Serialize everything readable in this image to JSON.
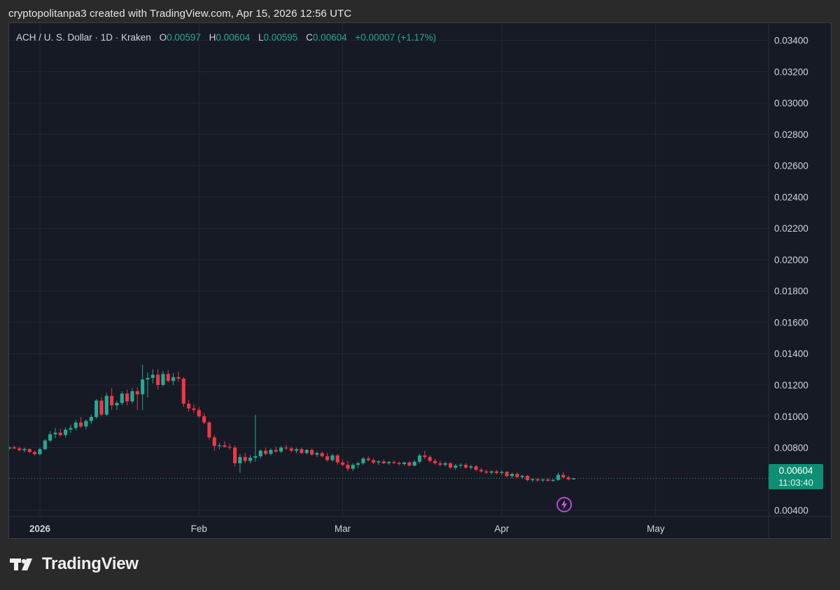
{
  "caption": "cryptopolitanpa3 created with TradingView.com, Apr 15, 2026 12:56 UTC",
  "legend": {
    "symbol": "ACH / U. S. Dollar · 1D · Kraken",
    "o_label": "O",
    "o_value": "0.00597",
    "h_label": "H",
    "h_value": "0.00604",
    "l_label": "L",
    "l_value": "0.00595",
    "c_label": "C",
    "c_value": "0.00604",
    "change": "+0.00007 (+1.17%)"
  },
  "price_tag": {
    "price": "0.00604",
    "countdown": "11:03:40"
  },
  "brand": "TradingView",
  "colors": {
    "up": "#22ab94",
    "down": "#f23645",
    "background": "#161a25",
    "grid": "#242733",
    "axis_text": "#d1d4dc"
  },
  "chart_data": {
    "type": "candlestick",
    "title": "ACH / U. S. Dollar · 1D · Kraken",
    "ylim": [
      0.0036,
      0.0351
    ],
    "xlim": [
      "2025-12-26",
      "2026-05-23"
    ],
    "y_ticks": [
      "0.03400",
      "0.03200",
      "0.03000",
      "0.02800",
      "0.02600",
      "0.02400",
      "0.02200",
      "0.02000",
      "0.01800",
      "0.01600",
      "0.01400",
      "0.01200",
      "0.01000",
      "0.00800",
      "0.00400"
    ],
    "x_ticks": [
      {
        "date": "2026-01-01",
        "label": "2026"
      },
      {
        "date": "2026-02-01",
        "label": "Feb"
      },
      {
        "date": "2026-03-01",
        "label": "Mar"
      },
      {
        "date": "2026-04-01",
        "label": "Apr"
      },
      {
        "date": "2026-05-01",
        "label": "May"
      }
    ],
    "last_price": 0.00604,
    "candles": [
      {
        "d": "2025-12-26",
        "o": 0.00793,
        "h": 0.00808,
        "l": 0.00785,
        "c": 0.00802
      },
      {
        "d": "2025-12-27",
        "o": 0.00802,
        "h": 0.00812,
        "l": 0.0079,
        "c": 0.00795
      },
      {
        "d": "2025-12-28",
        "o": 0.00795,
        "h": 0.00805,
        "l": 0.00777,
        "c": 0.00783
      },
      {
        "d": "2025-12-29",
        "o": 0.00783,
        "h": 0.008,
        "l": 0.0077,
        "c": 0.00791
      },
      {
        "d": "2025-12-30",
        "o": 0.00791,
        "h": 0.00793,
        "l": 0.00765,
        "c": 0.00772
      },
      {
        "d": "2025-12-31",
        "o": 0.00772,
        "h": 0.0078,
        "l": 0.0075,
        "c": 0.00758
      },
      {
        "d": "2026-01-01",
        "o": 0.00758,
        "h": 0.008,
        "l": 0.00748,
        "c": 0.0079
      },
      {
        "d": "2026-01-02",
        "o": 0.0079,
        "h": 0.00855,
        "l": 0.00785,
        "c": 0.00845
      },
      {
        "d": "2026-01-03",
        "o": 0.00845,
        "h": 0.00905,
        "l": 0.00835,
        "c": 0.00885
      },
      {
        "d": "2026-01-04",
        "o": 0.00885,
        "h": 0.00925,
        "l": 0.0086,
        "c": 0.00895
      },
      {
        "d": "2026-01-05",
        "o": 0.00895,
        "h": 0.0092,
        "l": 0.0087,
        "c": 0.0088
      },
      {
        "d": "2026-01-06",
        "o": 0.0088,
        "h": 0.0093,
        "l": 0.00865,
        "c": 0.00915
      },
      {
        "d": "2026-01-07",
        "o": 0.00915,
        "h": 0.00945,
        "l": 0.00895,
        "c": 0.00925
      },
      {
        "d": "2026-01-08",
        "o": 0.00925,
        "h": 0.00975,
        "l": 0.0091,
        "c": 0.0096
      },
      {
        "d": "2026-01-09",
        "o": 0.0096,
        "h": 0.00995,
        "l": 0.00925,
        "c": 0.00935
      },
      {
        "d": "2026-01-10",
        "o": 0.00935,
        "h": 0.0098,
        "l": 0.00915,
        "c": 0.0097
      },
      {
        "d": "2026-01-11",
        "o": 0.0097,
        "h": 0.0101,
        "l": 0.0095,
        "c": 0.00995
      },
      {
        "d": "2026-01-12",
        "o": 0.00995,
        "h": 0.0111,
        "l": 0.00985,
        "c": 0.011
      },
      {
        "d": "2026-01-13",
        "o": 0.011,
        "h": 0.0112,
        "l": 0.01,
        "c": 0.0101
      },
      {
        "d": "2026-01-14",
        "o": 0.0101,
        "h": 0.0115,
        "l": 0.01,
        "c": 0.0113
      },
      {
        "d": "2026-01-15",
        "o": 0.0113,
        "h": 0.0118,
        "l": 0.0104,
        "c": 0.0107
      },
      {
        "d": "2026-01-16",
        "o": 0.0107,
        "h": 0.011,
        "l": 0.0104,
        "c": 0.01085
      },
      {
        "d": "2026-01-17",
        "o": 0.01085,
        "h": 0.0116,
        "l": 0.0107,
        "c": 0.01145
      },
      {
        "d": "2026-01-18",
        "o": 0.01145,
        "h": 0.0117,
        "l": 0.0107,
        "c": 0.01095
      },
      {
        "d": "2026-01-19",
        "o": 0.01095,
        "h": 0.0118,
        "l": 0.0108,
        "c": 0.0116
      },
      {
        "d": "2026-01-20",
        "o": 0.0116,
        "h": 0.01185,
        "l": 0.0104,
        "c": 0.0114
      },
      {
        "d": "2026-01-21",
        "o": 0.0114,
        "h": 0.0133,
        "l": 0.0104,
        "c": 0.01235
      },
      {
        "d": "2026-01-22",
        "o": 0.01235,
        "h": 0.0128,
        "l": 0.0112,
        "c": 0.01245
      },
      {
        "d": "2026-01-23",
        "o": 0.01245,
        "h": 0.013,
        "l": 0.0121,
        "c": 0.01265
      },
      {
        "d": "2026-01-24",
        "o": 0.01265,
        "h": 0.013,
        "l": 0.0117,
        "c": 0.012
      },
      {
        "d": "2026-01-25",
        "o": 0.012,
        "h": 0.0129,
        "l": 0.0119,
        "c": 0.0127
      },
      {
        "d": "2026-01-26",
        "o": 0.0127,
        "h": 0.01295,
        "l": 0.01215,
        "c": 0.01225
      },
      {
        "d": "2026-01-27",
        "o": 0.01225,
        "h": 0.01275,
        "l": 0.012,
        "c": 0.0125
      },
      {
        "d": "2026-01-28",
        "o": 0.0125,
        "h": 0.01285,
        "l": 0.0122,
        "c": 0.0124
      },
      {
        "d": "2026-01-29",
        "o": 0.0124,
        "h": 0.0125,
        "l": 0.0106,
        "c": 0.0108
      },
      {
        "d": "2026-01-30",
        "o": 0.0108,
        "h": 0.01105,
        "l": 0.0103,
        "c": 0.0105
      },
      {
        "d": "2026-01-31",
        "o": 0.0105,
        "h": 0.01075,
        "l": 0.0102,
        "c": 0.0104
      },
      {
        "d": "2026-02-01",
        "o": 0.0104,
        "h": 0.0106,
        "l": 0.0099,
        "c": 0.01
      },
      {
        "d": "2026-02-02",
        "o": 0.01,
        "h": 0.0102,
        "l": 0.0095,
        "c": 0.0096
      },
      {
        "d": "2026-02-03",
        "o": 0.0096,
        "h": 0.0097,
        "l": 0.0085,
        "c": 0.00865
      },
      {
        "d": "2026-02-04",
        "o": 0.00865,
        "h": 0.0088,
        "l": 0.0078,
        "c": 0.0081
      },
      {
        "d": "2026-02-05",
        "o": 0.0081,
        "h": 0.0083,
        "l": 0.0079,
        "c": 0.00815
      },
      {
        "d": "2026-02-06",
        "o": 0.00815,
        "h": 0.0084,
        "l": 0.008,
        "c": 0.00805
      },
      {
        "d": "2026-02-07",
        "o": 0.00805,
        "h": 0.00825,
        "l": 0.00785,
        "c": 0.008
      },
      {
        "d": "2026-02-08",
        "o": 0.008,
        "h": 0.00815,
        "l": 0.0068,
        "c": 0.007
      },
      {
        "d": "2026-02-09",
        "o": 0.007,
        "h": 0.0076,
        "l": 0.0064,
        "c": 0.0074
      },
      {
        "d": "2026-02-10",
        "o": 0.0074,
        "h": 0.00765,
        "l": 0.007,
        "c": 0.00715
      },
      {
        "d": "2026-02-11",
        "o": 0.00715,
        "h": 0.0075,
        "l": 0.007,
        "c": 0.00735
      },
      {
        "d": "2026-02-12",
        "o": 0.00735,
        "h": 0.0101,
        "l": 0.0071,
        "c": 0.00745
      },
      {
        "d": "2026-02-13",
        "o": 0.00745,
        "h": 0.0079,
        "l": 0.0073,
        "c": 0.0078
      },
      {
        "d": "2026-02-14",
        "o": 0.0078,
        "h": 0.008,
        "l": 0.0075,
        "c": 0.0076
      },
      {
        "d": "2026-02-15",
        "o": 0.0076,
        "h": 0.00795,
        "l": 0.0075,
        "c": 0.00785
      },
      {
        "d": "2026-02-16",
        "o": 0.00785,
        "h": 0.00805,
        "l": 0.00765,
        "c": 0.00775
      },
      {
        "d": "2026-02-17",
        "o": 0.00775,
        "h": 0.0081,
        "l": 0.00765,
        "c": 0.008
      },
      {
        "d": "2026-02-18",
        "o": 0.008,
        "h": 0.0082,
        "l": 0.00785,
        "c": 0.00795
      },
      {
        "d": "2026-02-19",
        "o": 0.00795,
        "h": 0.00805,
        "l": 0.0077,
        "c": 0.0078
      },
      {
        "d": "2026-02-20",
        "o": 0.0078,
        "h": 0.008,
        "l": 0.00765,
        "c": 0.0079
      },
      {
        "d": "2026-02-21",
        "o": 0.0079,
        "h": 0.008,
        "l": 0.0076,
        "c": 0.00765
      },
      {
        "d": "2026-02-22",
        "o": 0.00765,
        "h": 0.0079,
        "l": 0.00755,
        "c": 0.00785
      },
      {
        "d": "2026-02-23",
        "o": 0.00785,
        "h": 0.00795,
        "l": 0.0075,
        "c": 0.00755
      },
      {
        "d": "2026-02-24",
        "o": 0.00755,
        "h": 0.00775,
        "l": 0.0074,
        "c": 0.00765
      },
      {
        "d": "2026-02-25",
        "o": 0.00765,
        "h": 0.00775,
        "l": 0.00735,
        "c": 0.00745
      },
      {
        "d": "2026-02-26",
        "o": 0.00745,
        "h": 0.00765,
        "l": 0.0071,
        "c": 0.0072
      },
      {
        "d": "2026-02-27",
        "o": 0.0072,
        "h": 0.0076,
        "l": 0.0071,
        "c": 0.0075
      },
      {
        "d": "2026-02-28",
        "o": 0.0075,
        "h": 0.0076,
        "l": 0.0069,
        "c": 0.00705
      },
      {
        "d": "2026-03-01",
        "o": 0.00705,
        "h": 0.00725,
        "l": 0.0068,
        "c": 0.0069
      },
      {
        "d": "2026-03-02",
        "o": 0.0069,
        "h": 0.00715,
        "l": 0.0065,
        "c": 0.00665
      },
      {
        "d": "2026-03-03",
        "o": 0.00665,
        "h": 0.007,
        "l": 0.0065,
        "c": 0.0069
      },
      {
        "d": "2026-03-04",
        "o": 0.0069,
        "h": 0.0071,
        "l": 0.0067,
        "c": 0.007
      },
      {
        "d": "2026-03-05",
        "o": 0.007,
        "h": 0.0074,
        "l": 0.0069,
        "c": 0.0073
      },
      {
        "d": "2026-03-06",
        "o": 0.0073,
        "h": 0.00745,
        "l": 0.0071,
        "c": 0.0072
      },
      {
        "d": "2026-03-07",
        "o": 0.0072,
        "h": 0.0073,
        "l": 0.00695,
        "c": 0.00705
      },
      {
        "d": "2026-03-08",
        "o": 0.00705,
        "h": 0.0072,
        "l": 0.0069,
        "c": 0.00712
      },
      {
        "d": "2026-03-09",
        "o": 0.00712,
        "h": 0.00725,
        "l": 0.00695,
        "c": 0.007
      },
      {
        "d": "2026-03-10",
        "o": 0.007,
        "h": 0.00715,
        "l": 0.0069,
        "c": 0.00708
      },
      {
        "d": "2026-03-11",
        "o": 0.00708,
        "h": 0.00718,
        "l": 0.00695,
        "c": 0.00702
      },
      {
        "d": "2026-03-12",
        "o": 0.00702,
        "h": 0.00712,
        "l": 0.00685,
        "c": 0.00695
      },
      {
        "d": "2026-03-13",
        "o": 0.00695,
        "h": 0.0071,
        "l": 0.00685,
        "c": 0.00705
      },
      {
        "d": "2026-03-14",
        "o": 0.00705,
        "h": 0.00712,
        "l": 0.0068,
        "c": 0.00685
      },
      {
        "d": "2026-03-15",
        "o": 0.00685,
        "h": 0.0072,
        "l": 0.0068,
        "c": 0.0071
      },
      {
        "d": "2026-03-16",
        "o": 0.0071,
        "h": 0.0076,
        "l": 0.007,
        "c": 0.0075
      },
      {
        "d": "2026-03-17",
        "o": 0.0075,
        "h": 0.0078,
        "l": 0.00725,
        "c": 0.0074
      },
      {
        "d": "2026-03-18",
        "o": 0.0074,
        "h": 0.0075,
        "l": 0.00705,
        "c": 0.00715
      },
      {
        "d": "2026-03-19",
        "o": 0.00715,
        "h": 0.0073,
        "l": 0.0069,
        "c": 0.007
      },
      {
        "d": "2026-03-20",
        "o": 0.007,
        "h": 0.00715,
        "l": 0.0068,
        "c": 0.0069
      },
      {
        "d": "2026-03-21",
        "o": 0.0069,
        "h": 0.0071,
        "l": 0.0068,
        "c": 0.007
      },
      {
        "d": "2026-03-22",
        "o": 0.007,
        "h": 0.00705,
        "l": 0.00665,
        "c": 0.00672
      },
      {
        "d": "2026-03-23",
        "o": 0.00672,
        "h": 0.00695,
        "l": 0.0066,
        "c": 0.00685
      },
      {
        "d": "2026-03-24",
        "o": 0.00685,
        "h": 0.007,
        "l": 0.0067,
        "c": 0.0069
      },
      {
        "d": "2026-03-25",
        "o": 0.0069,
        "h": 0.007,
        "l": 0.00665,
        "c": 0.00672
      },
      {
        "d": "2026-03-26",
        "o": 0.00672,
        "h": 0.0069,
        "l": 0.0066,
        "c": 0.0068
      },
      {
        "d": "2026-03-27",
        "o": 0.0068,
        "h": 0.0069,
        "l": 0.0065,
        "c": 0.00658
      },
      {
        "d": "2026-03-28",
        "o": 0.00658,
        "h": 0.0067,
        "l": 0.0064,
        "c": 0.00648
      },
      {
        "d": "2026-03-29",
        "o": 0.00648,
        "h": 0.0066,
        "l": 0.0063,
        "c": 0.0064
      },
      {
        "d": "2026-03-30",
        "o": 0.0064,
        "h": 0.00655,
        "l": 0.00628,
        "c": 0.00648
      },
      {
        "d": "2026-03-31",
        "o": 0.00648,
        "h": 0.00658,
        "l": 0.0063,
        "c": 0.00638
      },
      {
        "d": "2026-04-01",
        "o": 0.00638,
        "h": 0.00655,
        "l": 0.00625,
        "c": 0.00645
      },
      {
        "d": "2026-04-02",
        "o": 0.00645,
        "h": 0.00652,
        "l": 0.0061,
        "c": 0.00618
      },
      {
        "d": "2026-04-03",
        "o": 0.00618,
        "h": 0.0064,
        "l": 0.00605,
        "c": 0.00632
      },
      {
        "d": "2026-04-04",
        "o": 0.00632,
        "h": 0.0064,
        "l": 0.00605,
        "c": 0.00612
      },
      {
        "d": "2026-04-05",
        "o": 0.00612,
        "h": 0.00625,
        "l": 0.006,
        "c": 0.0062
      },
      {
        "d": "2026-04-06",
        "o": 0.0062,
        "h": 0.00625,
        "l": 0.00585,
        "c": 0.00592
      },
      {
        "d": "2026-04-07",
        "o": 0.00592,
        "h": 0.00605,
        "l": 0.0058,
        "c": 0.00598
      },
      {
        "d": "2026-04-08",
        "o": 0.00598,
        "h": 0.00605,
        "l": 0.00582,
        "c": 0.0059
      },
      {
        "d": "2026-04-09",
        "o": 0.0059,
        "h": 0.00602,
        "l": 0.0058,
        "c": 0.00596
      },
      {
        "d": "2026-04-10",
        "o": 0.00596,
        "h": 0.00605,
        "l": 0.00583,
        "c": 0.00588
      },
      {
        "d": "2026-04-11",
        "o": 0.00588,
        "h": 0.006,
        "l": 0.0058,
        "c": 0.00594
      },
      {
        "d": "2026-04-12",
        "o": 0.00594,
        "h": 0.0064,
        "l": 0.00588,
        "c": 0.00626
      },
      {
        "d": "2026-04-13",
        "o": 0.00626,
        "h": 0.00645,
        "l": 0.006,
        "c": 0.0061
      },
      {
        "d": "2026-04-14",
        "o": 0.0061,
        "h": 0.0062,
        "l": 0.0059,
        "c": 0.00597
      },
      {
        "d": "2026-04-15",
        "o": 0.00597,
        "h": 0.00604,
        "l": 0.00595,
        "c": 0.00604
      }
    ]
  }
}
